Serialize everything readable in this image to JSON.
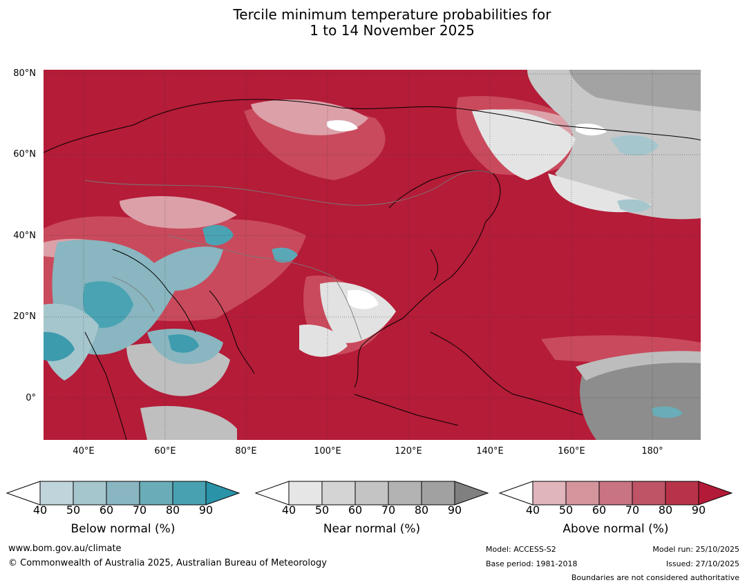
{
  "title": {
    "line1": "Tercile minimum temperature probabilities for",
    "line2": "1 to 14 November 2025"
  },
  "axes": {
    "lat_labels": [
      "80°N",
      "60°N",
      "40°N",
      "20°N",
      "0°"
    ],
    "lon_labels": [
      "40°E",
      "60°E",
      "80°E",
      "100°E",
      "120°E",
      "140°E",
      "160°E",
      "180°"
    ]
  },
  "colorbars": [
    {
      "label": "Below normal (%)",
      "ticks": [
        "40",
        "50",
        "60",
        "70",
        "80",
        "90"
      ],
      "colors": [
        "#ffffff",
        "#c0d4dc",
        "#a6c6cd",
        "#89b6c0",
        "#6aacb7",
        "#48a1b1",
        "#2a93a8"
      ]
    },
    {
      "label": "Near normal (%)",
      "ticks": [
        "40",
        "50",
        "60",
        "70",
        "80",
        "90"
      ],
      "colors": [
        "#ffffff",
        "#e6e6e6",
        "#d4d4d4",
        "#c4c4c4",
        "#b3b3b3",
        "#a1a1a1",
        "#808080"
      ]
    },
    {
      "label": "Above normal (%)",
      "ticks": [
        "40",
        "50",
        "60",
        "70",
        "80",
        "90"
      ],
      "colors": [
        "#ffffff",
        "#e0b5bb",
        "#d4959d",
        "#c97482",
        "#be5466",
        "#b83349",
        "#b21a38"
      ]
    }
  ],
  "footer": {
    "url": "www.bom.gov.au/climate",
    "copyright": "© Commonwealth of Australia 2025, Australian Bureau of Meteorology",
    "model": "Model: ACCESS-S2",
    "base_period": "Base period: 1981-2018",
    "model_run": "Model run: 25/10/2025",
    "issued": "Issued: 27/10/2025",
    "disclaimer": "Boundaries are not considered authoritative"
  }
}
